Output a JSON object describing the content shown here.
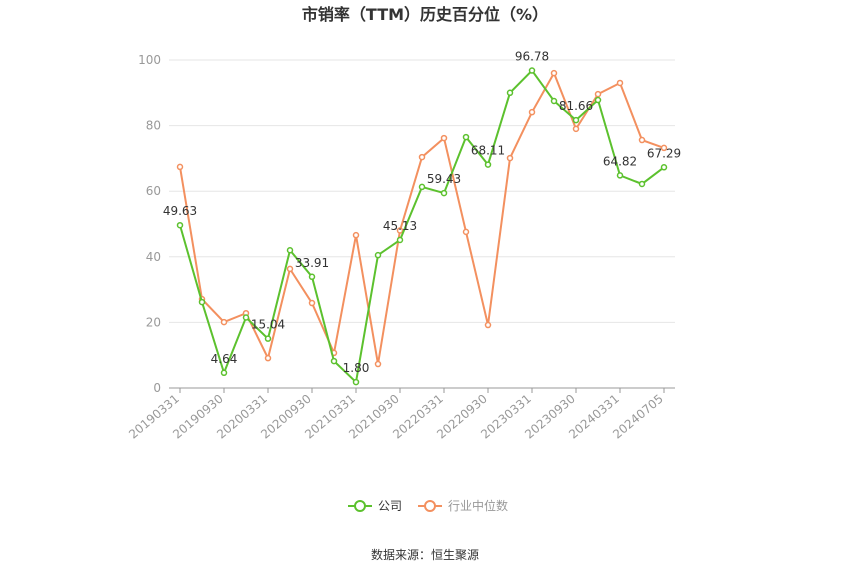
{
  "chart_data": {
    "type": "line",
    "title": "市销率（TTM）历史百分位（%）",
    "categories": [
      "20190331",
      null,
      "20190930",
      null,
      "20200331",
      null,
      "20200930",
      null,
      "20210331",
      null,
      "20210930",
      null,
      "20220331",
      null,
      "20220930",
      null,
      "20230331",
      null,
      "20230930",
      null,
      "20240331",
      null,
      "20240705"
    ],
    "series": [
      {
        "name": "公司",
        "color": "#5cc12e",
        "values": [
          49.63,
          26.2,
          4.64,
          21.5,
          15.04,
          42.0,
          33.91,
          8.2,
          1.8,
          40.5,
          45.13,
          61.3,
          59.43,
          76.5,
          68.11,
          90.0,
          96.78,
          87.5,
          81.66,
          87.8,
          64.82,
          62.2,
          67.29
        ],
        "value_labels": [
          "49.63",
          null,
          "4.64",
          null,
          "15.04",
          null,
          "33.91",
          null,
          "1.80",
          null,
          "45.13",
          null,
          "59.43",
          null,
          "68.11",
          null,
          "96.78",
          null,
          "81.66",
          null,
          "64.82",
          null,
          "67.29"
        ]
      },
      {
        "name": "行业中位数",
        "color": "#f3905f",
        "values": [
          67.4,
          27.1,
          20.1,
          22.8,
          9.1,
          36.3,
          25.9,
          10.7,
          46.6,
          7.3,
          48.0,
          70.4,
          76.2,
          47.6,
          19.2,
          70.1,
          84.1,
          96.0,
          79.0,
          89.6,
          93.0,
          75.6,
          73.2
        ]
      }
    ],
    "ylim": [
      0,
      100
    ],
    "yticks": [
      0,
      20,
      40,
      60,
      80,
      100
    ],
    "grid": true,
    "source": "数据来源：恒生聚源"
  }
}
